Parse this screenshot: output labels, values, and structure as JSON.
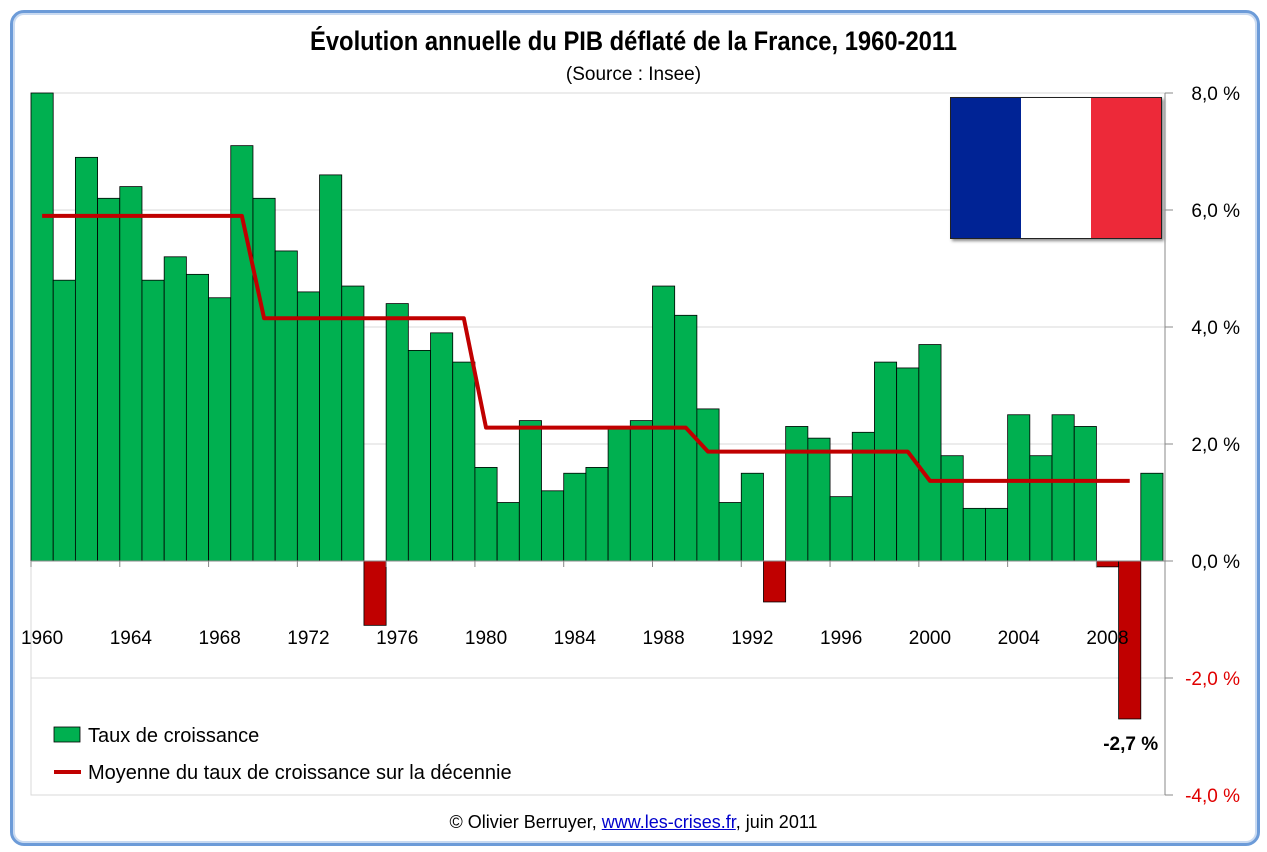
{
  "chart_data": {
    "type": "bar",
    "title": "Évolution annuelle du PIB déflaté de la France, 1960-2011",
    "subtitle": "(Source : Insee)",
    "x": [
      1960,
      1961,
      1962,
      1963,
      1964,
      1965,
      1966,
      1967,
      1968,
      1969,
      1970,
      1971,
      1972,
      1973,
      1974,
      1975,
      1976,
      1977,
      1978,
      1979,
      1980,
      1981,
      1982,
      1983,
      1984,
      1985,
      1986,
      1987,
      1988,
      1989,
      1990,
      1991,
      1992,
      1993,
      1994,
      1995,
      1996,
      1997,
      1998,
      1999,
      2000,
      2001,
      2002,
      2003,
      2004,
      2005,
      2006,
      2007,
      2008,
      2009,
      2010
    ],
    "series": [
      {
        "name": "Taux de croissance",
        "color": "#00b050",
        "negative_color": "#c00000",
        "values": [
          8.0,
          4.8,
          6.9,
          6.2,
          6.4,
          4.8,
          5.2,
          4.9,
          4.5,
          7.1,
          6.2,
          5.3,
          4.6,
          6.6,
          4.7,
          -1.1,
          4.4,
          3.6,
          3.9,
          3.4,
          1.6,
          1.0,
          2.4,
          1.2,
          1.5,
          1.6,
          2.3,
          2.4,
          4.7,
          4.2,
          2.6,
          1.0,
          1.5,
          -0.7,
          2.3,
          2.1,
          1.1,
          2.2,
          3.4,
          3.3,
          3.7,
          1.8,
          0.9,
          0.9,
          2.5,
          1.8,
          2.5,
          2.3,
          -0.1,
          -2.7,
          1.5
        ]
      },
      {
        "name": "Moyenne du taux de croissance sur la décennie",
        "color": "#c00000",
        "type": "line",
        "decades": [
          {
            "from": 1960,
            "to": 1969,
            "value": 5.9
          },
          {
            "from": 1970,
            "to": 1979,
            "value": 4.15
          },
          {
            "from": 1980,
            "to": 1989,
            "value": 2.28
          },
          {
            "from": 1990,
            "to": 1999,
            "value": 1.87
          },
          {
            "from": 2000,
            "to": 2009,
            "value": 1.37
          }
        ]
      }
    ],
    "x_tick_labels": [
      "1960",
      "1964",
      "1968",
      "1972",
      "1976",
      "1980",
      "1984",
      "1988",
      "1992",
      "1996",
      "2000",
      "2004",
      "2008"
    ],
    "y_tick_labels": [
      "8,0 %",
      "6,0 %",
      "4,0 %",
      "2,0 %",
      "0,0 %",
      "-2,0 %",
      "-4,0 %"
    ],
    "y_ticks": [
      8,
      6,
      4,
      2,
      0,
      -2,
      -4
    ],
    "ylim": [
      -4,
      8
    ],
    "y_axis_side": "right",
    "grid": true,
    "legend_placement": "bottom-left",
    "annotations": [
      {
        "x": 2009,
        "text": "-2,7 %"
      }
    ]
  },
  "flag": {
    "colors": [
      "#002395",
      "#ffffff",
      "#ed2939"
    ]
  },
  "footer": {
    "prefix": "© Olivier Berruyer, ",
    "link": "www.les-crises.fr",
    "suffix": ",  juin 2011"
  },
  "colors": {
    "frame": "#6c9bd8",
    "negative_tick": "#e00000"
  }
}
